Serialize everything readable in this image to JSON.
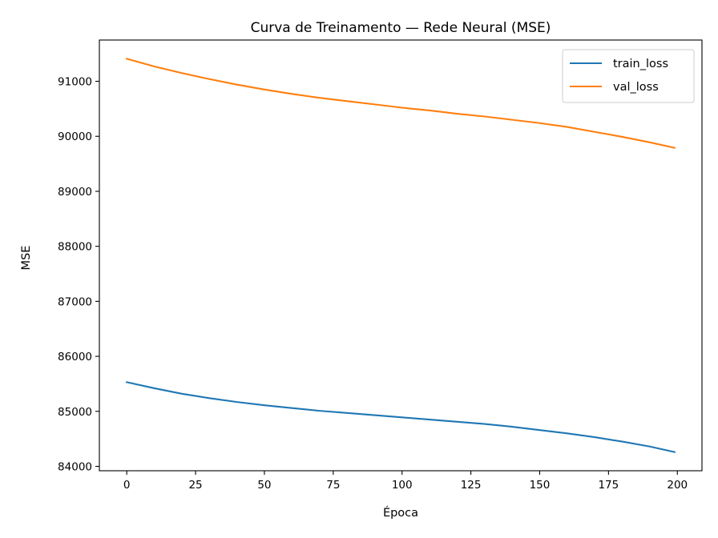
{
  "chart_data": {
    "type": "line",
    "title": "Curva de Treinamento — Rede Neural (MSE)",
    "xlabel": "Época",
    "ylabel": "MSE",
    "xlim": [
      -9.95,
      208.95
    ],
    "ylim": [
      83920,
      91750
    ],
    "xticks": [
      0,
      25,
      50,
      75,
      100,
      125,
      150,
      175,
      200
    ],
    "yticks": [
      84000,
      85000,
      86000,
      87000,
      88000,
      89000,
      90000,
      91000
    ],
    "grid": false,
    "legend": "top-right",
    "series": [
      {
        "name": "train_loss",
        "color": "#1f77b4",
        "x": [
          0,
          10,
          20,
          30,
          40,
          50,
          60,
          70,
          80,
          90,
          100,
          110,
          120,
          130,
          140,
          150,
          160,
          170,
          180,
          190,
          199
        ],
        "values": [
          85530,
          85420,
          85320,
          85240,
          85170,
          85110,
          85060,
          85010,
          84970,
          84930,
          84890,
          84850,
          84810,
          84770,
          84720,
          84660,
          84600,
          84530,
          84450,
          84360,
          84260
        ]
      },
      {
        "name": "val_loss",
        "color": "#ff7f0e",
        "x": [
          0,
          10,
          20,
          30,
          40,
          50,
          60,
          70,
          80,
          90,
          100,
          110,
          120,
          130,
          140,
          150,
          160,
          170,
          180,
          190,
          199
        ],
        "values": [
          91410,
          91270,
          91150,
          91040,
          90940,
          90850,
          90770,
          90700,
          90640,
          90580,
          90520,
          90470,
          90410,
          90360,
          90300,
          90240,
          90170,
          90080,
          89990,
          89890,
          89790
        ]
      }
    ]
  }
}
